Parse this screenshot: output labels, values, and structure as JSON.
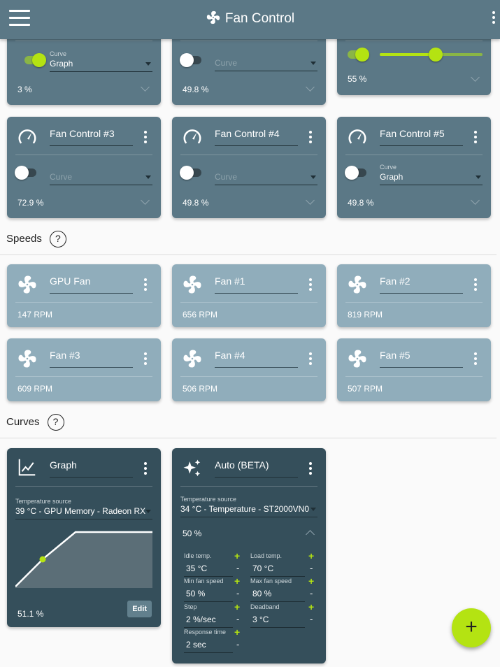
{
  "appbar": {
    "title": "Fan Control",
    "menu_icon": "hamburger-icon",
    "more_icon": "more-vert-icon"
  },
  "controls_top": [
    {
      "select_label": "Curve",
      "select_value": "Graph",
      "percent": "3 %",
      "enabled": true
    },
    {
      "select_label": "",
      "select_value": "Curve",
      "percent": "49.8 %",
      "enabled": false
    },
    {
      "percent": "55 %",
      "enabled": true,
      "slider_value": 0.55
    }
  ],
  "controls": [
    {
      "name": "Fan Control #3",
      "select_label": "",
      "select_value": "Curve",
      "percent": "72.9 %",
      "enabled": false
    },
    {
      "name": "Fan Control #4",
      "select_label": "",
      "select_value": "Curve",
      "percent": "49.8 %",
      "enabled": false
    },
    {
      "name": "Fan Control #5",
      "select_label": "Curve",
      "select_value": "Graph",
      "percent": "49.8 %",
      "enabled": false
    }
  ],
  "speeds_section": {
    "title": "Speeds",
    "help": "?"
  },
  "speeds": [
    {
      "name": "GPU Fan",
      "rpm": "147 RPM"
    },
    {
      "name": "Fan #1",
      "rpm": "656 RPM"
    },
    {
      "name": "Fan #2",
      "rpm": "819 RPM"
    },
    {
      "name": "Fan #3",
      "rpm": "609 RPM"
    },
    {
      "name": "Fan #4",
      "rpm": "506 RPM"
    },
    {
      "name": "Fan #5",
      "rpm": "507 RPM"
    }
  ],
  "curves_section": {
    "title": "Curves",
    "help": "?"
  },
  "graph_curve": {
    "name": "Graph",
    "temp_label": "Temperature source",
    "temp_value": "39 °C - GPU Memory - Radeon RX",
    "percent": "51.1 %",
    "edit_label": "Edit"
  },
  "auto_curve": {
    "name": "Auto (BETA)",
    "temp_label": "Temperature source",
    "temp_value": "34 °C - Temperature - ST2000VN0",
    "percent": "50 %",
    "params": {
      "idle_label": "Idle temp.",
      "idle_value": "35 °C",
      "load_label": "Load temp.",
      "load_value": "70 °C",
      "minfan_label": "Min fan speed",
      "minfan_value": "50 %",
      "maxfan_label": "Max fan speed",
      "maxfan_value": "80 %",
      "step_label": "Step",
      "step_value": "2 %/sec",
      "deadband_label": "Deadband",
      "deadband_value": "3 °C",
      "response_label": "Response time",
      "response_value": "2 sec"
    },
    "plus": "+",
    "minus": "-"
  },
  "fab": {
    "label": "+"
  },
  "colors": {
    "accent": "#b4e312",
    "control_card": "#5b7886",
    "speed_card": "#90adbb",
    "curve_card": "#354f5b"
  }
}
